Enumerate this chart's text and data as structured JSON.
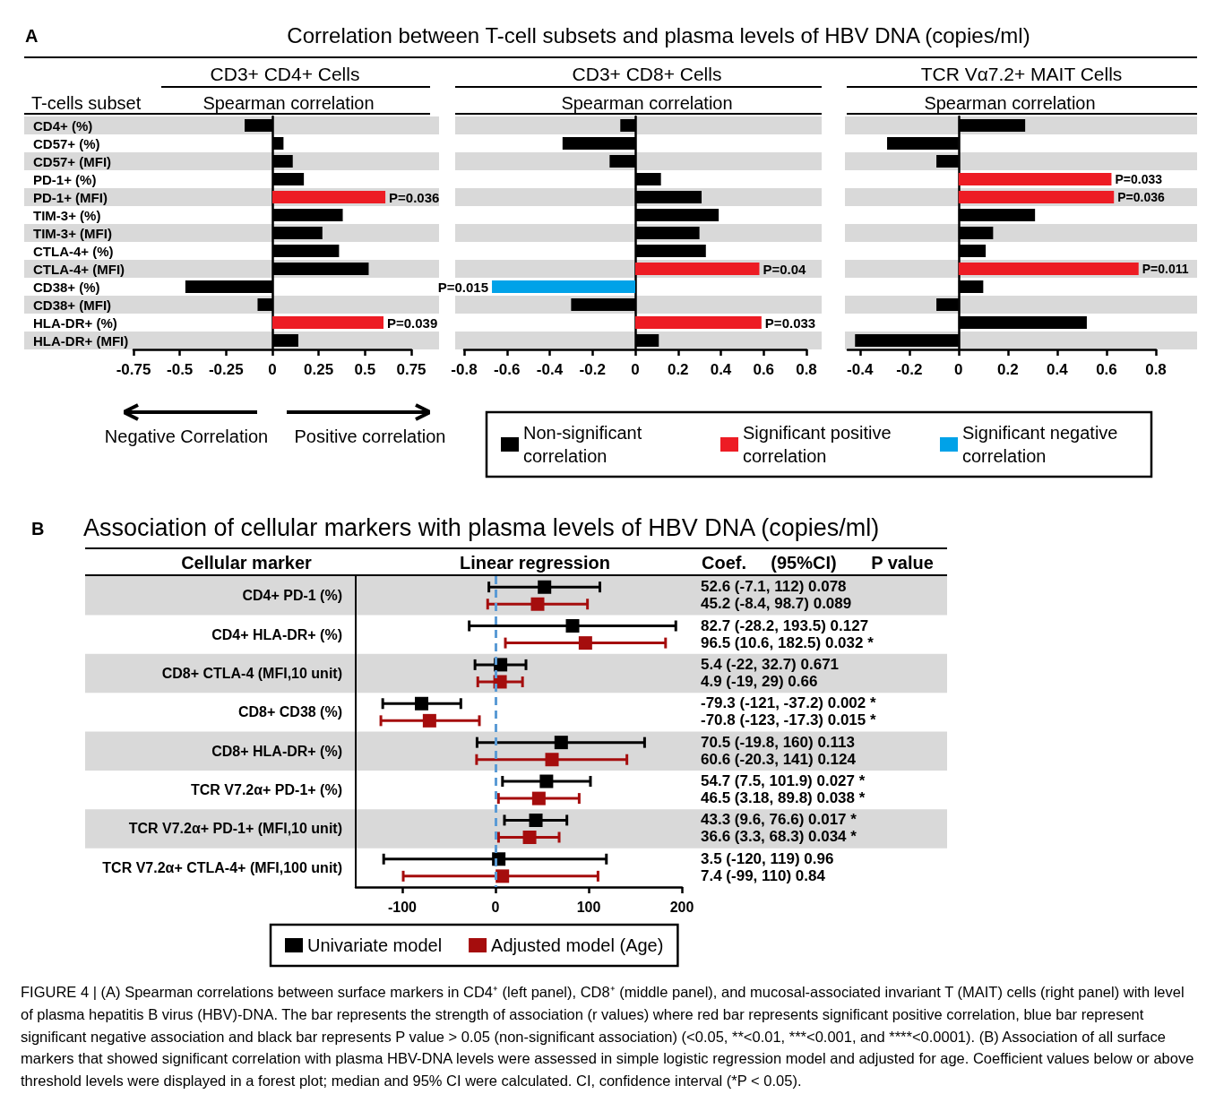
{
  "chart_data": [
    {
      "type": "bar",
      "orientation": "horizontal",
      "stacked": true,
      "title": "Correlation between T-cell subsets and plasma levels of HBV DNA (copies/ml)",
      "subtitle": "CD3+ CD4+ Cells",
      "xlabel": "Spearman correlation",
      "ylabel": "T-cells subset",
      "categories": [
        "CD4+ (%)",
        "CD57+ (%)",
        "CD57+ (MFI)",
        "PD-1+ (%)",
        "PD-1+ (MFI)",
        "TIM-3+ (%)",
        "TIM-3+ (MFI)",
        "CTLA-4+ (%)",
        "CTLA-4+ (MFI)",
        "CD38+ (%)",
        "CD38+ (MFI)",
        "HLA-DR+ (%)",
        "HLA-DR+ (MFI)"
      ],
      "series": [
        {
          "color": "#000000",
          "values": [
            -0.15,
            0.06,
            0.11,
            0.17,
            null,
            0.38,
            0.27,
            0.36,
            0.52,
            -0.47,
            -0.08,
            null,
            0.14
          ]
        },
        {
          "color": "#ed1c24",
          "values": [
            null,
            null,
            null,
            null,
            0.61,
            null,
            null,
            null,
            null,
            null,
            null,
            0.6,
            null
          ]
        }
      ],
      "xlim": [
        -0.75,
        0.75
      ],
      "xticks": [
        -0.75,
        -0.5,
        -0.25,
        0,
        0.25,
        0.5,
        0.75
      ],
      "bands": [
        {
          "axis": "y",
          "from": "CD4+ (%)",
          "to": "CD4+ (%)",
          "color": "#d9d9d9"
        },
        {
          "axis": "y",
          "from": "CD57+ (MFI)",
          "to": "CD57+ (MFI)",
          "color": "#d9d9d9"
        },
        {
          "axis": "y",
          "from": "PD-1+ (MFI)",
          "to": "PD-1+ (MFI)",
          "color": "#d9d9d9"
        },
        {
          "axis": "y",
          "from": "TIM-3+ (MFI)",
          "to": "TIM-3+ (MFI)",
          "color": "#d9d9d9"
        },
        {
          "axis": "y",
          "from": "CTLA-4+ (MFI)",
          "to": "CTLA-4+ (MFI)",
          "color": "#d9d9d9"
        },
        {
          "axis": "y",
          "from": "CD38+ (MFI)",
          "to": "CD38+ (MFI)",
          "color": "#d9d9d9"
        },
        {
          "axis": "y",
          "from": "HLA-DR+ (MFI)",
          "to": "HLA-DR+ (MFI)",
          "color": "#d9d9d9"
        }
      ],
      "annotations": [
        "A",
        "Negative Correlation",
        "Positive correlation",
        {
          "text": "P=0.036",
          "x": 0.61,
          "y": "PD-1+ (MFI)"
        },
        {
          "text": "P=0.039",
          "x": 0.6,
          "y": "HLA-DR+ (%)"
        }
      ]
    },
    {
      "type": "bar",
      "orientation": "horizontal",
      "stacked": true,
      "subtitle": "CD3+ CD8+ Cells",
      "xlabel": "Spearman correlation",
      "tick_labels": "x",
      "legend": "bottom",
      "categories": [
        "CD4+ (%)",
        "CD57+ (%)",
        "CD57+ (MFI)",
        "PD-1+ (%)",
        "PD-1+ (MFI)",
        "TIM-3+ (%)",
        "TIM-3+ (MFI)",
        "CTLA-4+ (%)",
        "CTLA-4+ (MFI)",
        "CD38+ (%)",
        "CD38+ (MFI)",
        "HLA-DR+ (%)",
        "HLA-DR+ (MFI)"
      ],
      "series": [
        {
          "name": "Non-significant correlation",
          "color": "#000000",
          "values": [
            -0.07,
            -0.34,
            -0.12,
            0.12,
            0.31,
            0.39,
            0.3,
            0.33,
            null,
            null,
            -0.3,
            null,
            0.11
          ]
        },
        {
          "name": "Significant positive correlation",
          "color": "#ed1c24",
          "values": [
            null,
            null,
            null,
            null,
            null,
            null,
            null,
            null,
            0.58,
            null,
            null,
            0.59,
            null
          ]
        },
        {
          "name": "Significant negative correlation",
          "color": "#00a2e8",
          "values": [
            null,
            null,
            null,
            null,
            null,
            null,
            null,
            null,
            null,
            -0.67,
            null,
            null,
            null
          ]
        }
      ],
      "xlim": [
        -0.8,
        0.8
      ],
      "xticks": [
        -0.8,
        -0.6,
        -0.4,
        -0.2,
        0,
        0.2,
        0.4,
        0.6,
        0.8
      ],
      "bands": [
        {
          "axis": "y",
          "from": "CD4+ (%)",
          "to": "CD4+ (%)",
          "color": "#d9d9d9"
        },
        {
          "axis": "y",
          "from": "CD57+ (MFI)",
          "to": "CD57+ (MFI)",
          "color": "#d9d9d9"
        },
        {
          "axis": "y",
          "from": "PD-1+ (MFI)",
          "to": "PD-1+ (MFI)",
          "color": "#d9d9d9"
        },
        {
          "axis": "y",
          "from": "TIM-3+ (MFI)",
          "to": "TIM-3+ (MFI)",
          "color": "#d9d9d9"
        },
        {
          "axis": "y",
          "from": "CTLA-4+ (MFI)",
          "to": "CTLA-4+ (MFI)",
          "color": "#d9d9d9"
        },
        {
          "axis": "y",
          "from": "CD38+ (MFI)",
          "to": "CD38+ (MFI)",
          "color": "#d9d9d9"
        },
        {
          "axis": "y",
          "from": "HLA-DR+ (MFI)",
          "to": "HLA-DR+ (MFI)",
          "color": "#d9d9d9"
        }
      ],
      "annotations": [
        {
          "text": "P=0.04",
          "x": 0.58,
          "y": "CTLA-4+ (MFI)"
        },
        {
          "text": "P=0.015",
          "x": -0.67,
          "y": "CD38+ (%)"
        },
        {
          "text": "P=0.033",
          "x": 0.59,
          "y": "HLA-DR+ (%)"
        }
      ]
    },
    {
      "type": "bar",
      "orientation": "horizontal",
      "stacked": true,
      "subtitle": "TCR Vα7.2+ MAIT Cells",
      "xlabel": "Spearman correlation",
      "tick_labels": "x",
      "categories": [
        "CD4+ (%)",
        "CD57+ (%)",
        "CD57+ (MFI)",
        "PD-1+ (%)",
        "PD-1+ (MFI)",
        "TIM-3+ (%)",
        "TIM-3+ (MFI)",
        "CTLA-4+ (%)",
        "CTLA-4+ (MFI)",
        "CD38+ (%)",
        "CD38+ (MFI)",
        "HLA-DR+ (%)",
        "HLA-DR+ (MFI)"
      ],
      "series": [
        {
          "color": "#000000",
          "values": [
            0.27,
            -0.29,
            -0.09,
            null,
            null,
            0.31,
            0.14,
            0.11,
            null,
            0.1,
            -0.09,
            0.52,
            -0.42
          ]
        },
        {
          "color": "#ed1c24",
          "values": [
            null,
            null,
            null,
            0.62,
            0.63,
            null,
            null,
            null,
            0.73,
            null,
            null,
            null,
            null
          ]
        }
      ],
      "xlim": [
        -0.45,
        0.8
      ],
      "xticks": [
        -0.4,
        -0.2,
        0,
        0.2,
        0.4,
        0.6,
        0.8
      ],
      "bands": [
        {
          "axis": "y",
          "from": "CD4+ (%)",
          "to": "CD4+ (%)",
          "color": "#d9d9d9"
        },
        {
          "axis": "y",
          "from": "CD57+ (MFI)",
          "to": "CD57+ (MFI)",
          "color": "#d9d9d9"
        },
        {
          "axis": "y",
          "from": "PD-1+ (MFI)",
          "to": "PD-1+ (MFI)",
          "color": "#d9d9d9"
        },
        {
          "axis": "y",
          "from": "TIM-3+ (MFI)",
          "to": "TIM-3+ (MFI)",
          "color": "#d9d9d9"
        },
        {
          "axis": "y",
          "from": "CTLA-4+ (MFI)",
          "to": "CTLA-4+ (MFI)",
          "color": "#d9d9d9"
        },
        {
          "axis": "y",
          "from": "CD38+ (MFI)",
          "to": "CD38+ (MFI)",
          "color": "#d9d9d9"
        },
        {
          "axis": "y",
          "from": "HLA-DR+ (MFI)",
          "to": "HLA-DR+ (MFI)",
          "color": "#d9d9d9"
        }
      ],
      "annotations": [
        {
          "text": "P=0.033",
          "x": 0.62,
          "y": "PD-1+ (%)"
        },
        {
          "text": "P=0.036",
          "x": 0.63,
          "y": "PD-1+ (MFI)"
        },
        {
          "text": "P=0.011",
          "x": 0.73,
          "y": "CTLA-4+ (MFI)"
        }
      ]
    },
    {
      "type": "scatter",
      "orientation": "horizontal",
      "marker": "square",
      "legend": "bottom",
      "title": "Association of cellular markers with plasma levels of HBV DNA (copies/ml)",
      "subtitle": "Linear regression",
      "ylabel": "Cellular marker",
      "categories": [
        "CD4+ PD-1 (%)",
        "CD4+ HLA-DR+ (%)",
        "CD8+ CTLA-4 (MFI,10 unit)",
        "CD8+ CD38 (%)",
        "CD8+ HLA-DR+ (%)",
        "TCR V7.2α+ PD-1+ (%)",
        "TCR V7.2α+ PD-1+ (MFI,10 unit)",
        "TCR V7.2α+ CTLA-4+ (MFI,100 unit)"
      ],
      "series": [
        {
          "name": "Univariate model",
          "color": "#000000",
          "values": [
            52.6,
            82.7,
            5.4,
            -79.3,
            70.5,
            54.7,
            43.3,
            3.5
          ],
          "errors": [
            [
              -7.1,
              112
            ],
            [
              -28.2,
              193.5
            ],
            [
              -22,
              32.7
            ],
            [
              -121,
              -37.2
            ],
            [
              -19.8,
              160
            ],
            [
              7.5,
              101.9
            ],
            [
              9.6,
              76.6
            ],
            [
              -120,
              119
            ]
          ]
        },
        {
          "name": "Adjusted model (Age)",
          "color": "#a50d0d",
          "values": [
            45.2,
            96.5,
            4.9,
            -70.8,
            60.6,
            46.5,
            36.6,
            7.4
          ],
          "errors": [
            [
              -8.4,
              98.7
            ],
            [
              10.6,
              182.5
            ],
            [
              -19,
              29
            ],
            [
              -123,
              -17.3
            ],
            [
              -20.3,
              141
            ],
            [
              3.18,
              89.8
            ],
            [
              3.3,
              68.3
            ],
            [
              -99,
              110
            ]
          ]
        }
      ],
      "xlim": [
        -150,
        200
      ],
      "xticks": [
        -100,
        0,
        100,
        200
      ],
      "ref_lines": [
        {
          "axis": "x",
          "value": 0,
          "color": "#5b9bd5",
          "line_style": "dashed"
        }
      ],
      "bands": [
        {
          "axis": "y",
          "from": "CD4+ PD-1 (%)",
          "to": "CD4+ PD-1 (%)",
          "color": "#d9d9d9"
        },
        {
          "axis": "y",
          "from": "CD8+ CTLA-4 (MFI,10 unit)",
          "to": "CD8+ CTLA-4 (MFI,10 unit)",
          "color": "#d9d9d9"
        },
        {
          "axis": "y",
          "from": "CD8+ HLA-DR+ (%)",
          "to": "CD8+ HLA-DR+ (%)",
          "color": "#d9d9d9"
        },
        {
          "axis": "y",
          "from": "TCR V7.2α+ PD-1+ (MFI,10 unit)",
          "to": "TCR V7.2α+ PD-1+ (MFI,10 unit)",
          "color": "#d9d9d9"
        }
      ],
      "annotations": [
        "B",
        "FIGURE 4 | (A) Spearman correlations between surface markers in CD4⁺ (left panel), CD8⁺ (middle panel), and mucosal-associated invariant T (MAIT) cells (right panel) with level of plasma hepatitis B virus (HBV)-DNA. The bar represents the strength of association (r values) where red bar represents significant positive correlation, blue bar represent significant negative association and black bar represents P value > 0.05 (non-significant association) (<0.05, **<0.01, ***<0.001, and ****<0.0001). (B) Association of all surface markers that showed significant correlation with plasma HBV-DNA levels were assessed in simple logistic regression model and adjusted for age. Coefficient values below or above threshold levels were displayed in a forest plot; median and 95% CI were calculated. CI, confidence interval (*P < 0.05)."
      ]
    },
    {
      "type": "other",
      "annotations": [
        "Coef.",
        "(95%CI)",
        "P value",
        "52.6 (-7.1, 112) 0.078",
        "45.2 (-8.4, 98.7) 0.089",
        "82.7 (-28.2, 193.5) 0.127",
        "96.5 (10.6, 182.5) 0.032 *",
        "5.4 (-22, 32.7) 0.671",
        "4.9 (-19, 29) 0.66",
        "-79.3 (-121, -37.2) 0.002 *",
        "-70.8 (-123, -17.3) 0.015 *",
        "70.5 (-19.8, 160) 0.113",
        "60.6 (-20.3, 141) 0.124",
        "54.7 (7.5, 101.9) 0.027 *",
        "46.5 (3.18, 89.8) 0.038 *",
        "43.3 (9.6, 76.6) 0.017 *",
        "36.6 (3.3, 68.3) 0.034 *",
        "3.5 (-120, 119) 0.96",
        "7.4 (-99, 110) 0.84"
      ]
    }
  ]
}
